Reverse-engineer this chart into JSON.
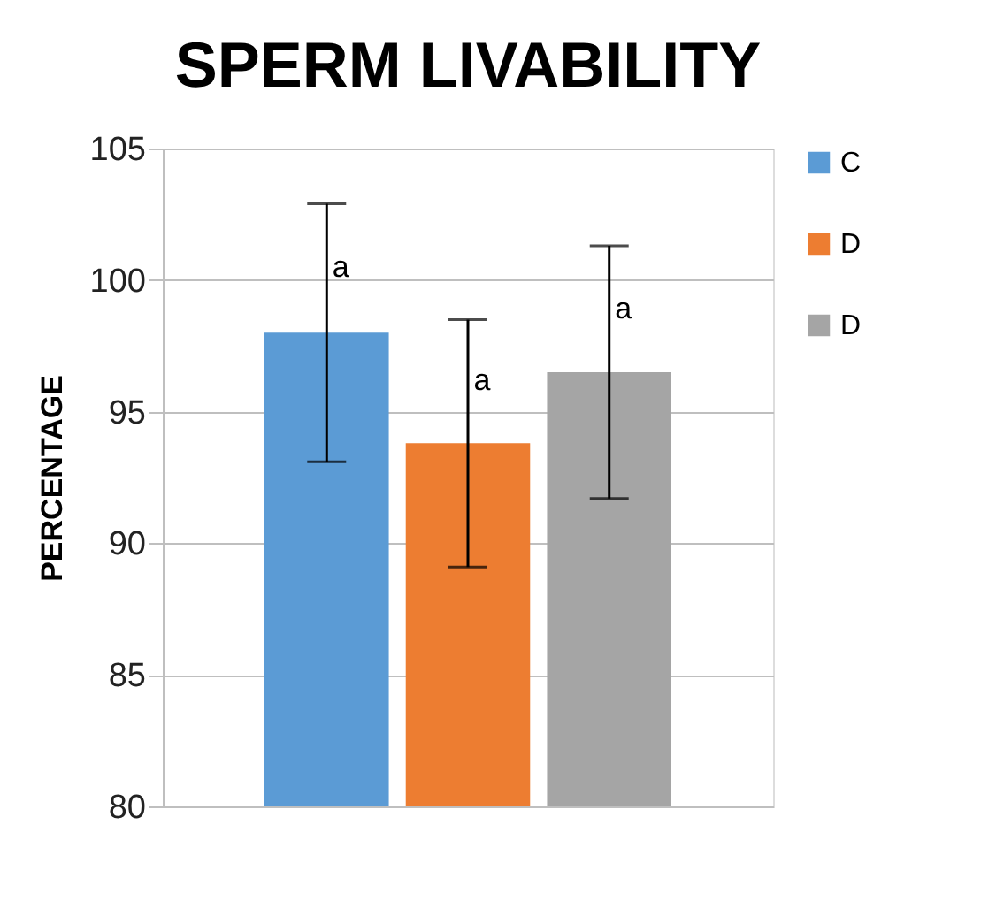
{
  "chart_data": {
    "type": "bar",
    "title": "SPERM LIVABILITY",
    "ylabel": "PERCENTAGE",
    "categories": [
      null
    ],
    "series": [
      {
        "name": "C",
        "color": "#5b9bd5",
        "values": [
          98.0
        ],
        "errors": [
          4.9
        ]
      },
      {
        "name": "D",
        "color": "#ed7d31",
        "values": [
          93.8
        ],
        "errors": [
          4.7
        ]
      },
      {
        "name": "D",
        "color": "#a5a5a5",
        "values": [
          96.5
        ],
        "errors": [
          4.8
        ]
      }
    ],
    "annotations": [
      "a",
      "a",
      "a"
    ],
    "ylim": [
      80,
      105
    ],
    "yticks": [
      80,
      85,
      90,
      95,
      100,
      105
    ],
    "grid": "y",
    "legend": "right"
  }
}
